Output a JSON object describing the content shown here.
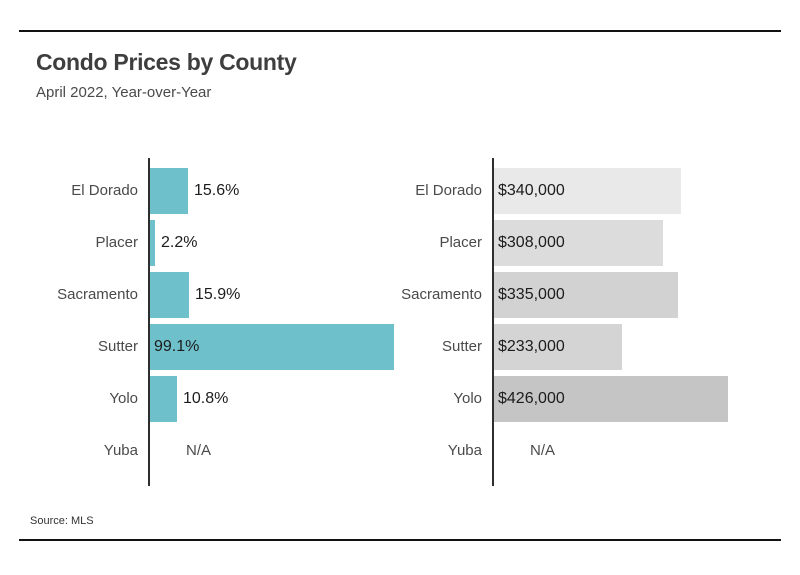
{
  "chart_data": {
    "type": "bar",
    "orientation": "horizontal",
    "title": "Condo Prices by County",
    "subtitle": "April 2022, Year-over-Year",
    "source": "Source:  MLS",
    "categories": [
      "El Dorado",
      "Placer",
      "Sacramento",
      "Sutter",
      "Yolo",
      "Yuba"
    ],
    "legend": "none",
    "grid": "off",
    "axis_color": "#2e2e2e",
    "accent_color": "#6ec1cb",
    "series": [
      {
        "name": "percent-change-year-over-year",
        "unit": "%",
        "values": [
          15.6,
          2.2,
          15.9,
          99.1,
          10.8,
          null
        ],
        "labels": [
          "15.6%",
          "2.2%",
          "15.9%",
          "99.1%",
          "10.8%",
          "N/A"
        ],
        "color": "#6ec1cb",
        "label_inside": [
          false,
          false,
          false,
          true,
          false,
          false
        ]
      },
      {
        "name": "median-price",
        "unit": "USD",
        "values": [
          340000,
          308000,
          335000,
          233000,
          426000,
          null
        ],
        "labels": [
          "$340,000",
          "$308,000",
          "$335,000",
          "$233,000",
          "$426,000",
          "N/A"
        ],
        "colors": [
          "#e9e9e9",
          "#dcdcdc",
          "#d2d2d2",
          "#d4d4d4",
          "#c5c5c5"
        ],
        "label_inside": [
          true,
          true,
          true,
          true,
          true,
          false
        ]
      }
    ]
  }
}
